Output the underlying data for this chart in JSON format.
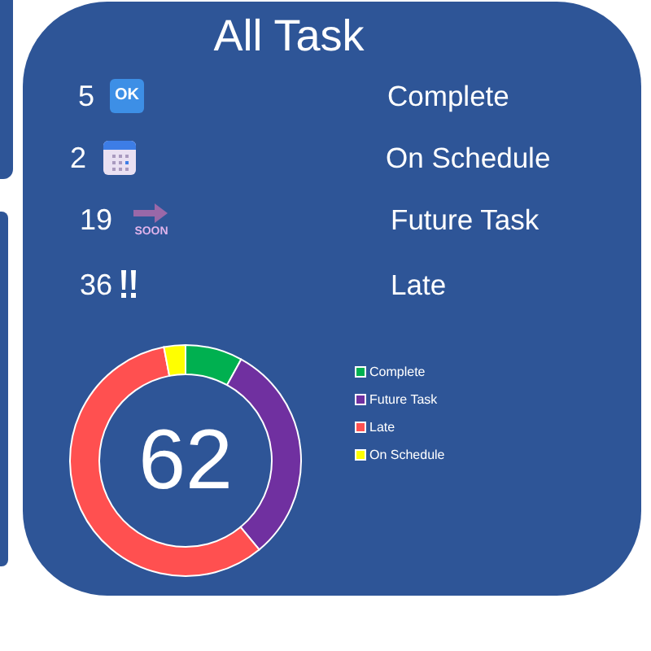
{
  "chart_data": [
    {
      "type": "other",
      "title": "All Task",
      "categories": [
        "Complete",
        "On Schedule",
        "Future Task",
        "Late"
      ],
      "values": [
        5,
        2,
        19,
        36
      ],
      "data_labels": true,
      "annotations": [
        "OK",
        "SOON"
      ]
    },
    {
      "type": "donut",
      "categories": [
        "Complete",
        "Future Task",
        "Late",
        "On Schedule"
      ],
      "values": [
        8,
        31,
        58,
        3
      ],
      "colors": [
        "#00b050",
        "#7030a0",
        "#ff5050",
        "#ffff00"
      ],
      "legend": "right",
      "annotations": [
        "62"
      ]
    }
  ]
}
